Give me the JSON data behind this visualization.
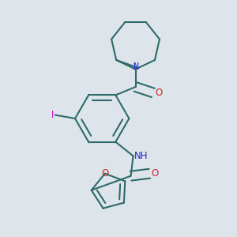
{
  "background_color": "#dde5ea",
  "bond_color": "#2d6b6b",
  "bond_width": 1.5,
  "N_color": "#2222cc",
  "O_color": "#cc2222",
  "I_color": "#cc00cc",
  "font_size": 8.5,
  "figsize": [
    3.0,
    3.0
  ],
  "dpi": 100,
  "xlim": [
    0.0,
    1.0
  ],
  "ylim": [
    0.0,
    1.0
  ]
}
